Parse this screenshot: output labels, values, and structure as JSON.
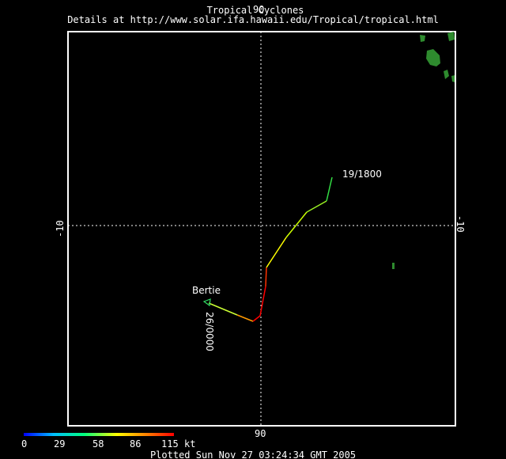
{
  "header": {
    "title": "Tropical Cyclones",
    "details": "Details at http://www.solar.ifa.hawaii.edu/Tropical/tropical.html"
  },
  "map": {
    "lon_top": "90",
    "lon_bottom": "90",
    "lat_left": "-10",
    "lat_right": "-10",
    "land_color": "#2e8b2e",
    "grid_color": "#ffffff"
  },
  "storm": {
    "name": "Bertie",
    "start_label": "19/1800",
    "end_label": "26/0000"
  },
  "legend": {
    "ticks": [
      "0",
      "29",
      "58",
      "86",
      "115"
    ],
    "unit": "kt",
    "colors": [
      "#0000ff",
      "#00c0ff",
      "#00ff80",
      "#ffff00",
      "#ff8000",
      "#ff0000"
    ]
  },
  "footer": {
    "plotted": "Plotted Sun Nov 27 03:24:34 GMT 2005"
  }
}
